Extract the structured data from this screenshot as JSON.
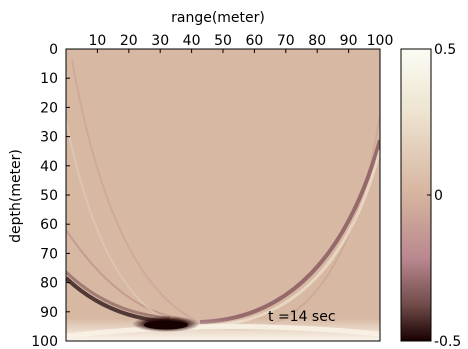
{
  "chart_data": {
    "type": "heatmap",
    "title": "",
    "xlabel": "range(meter)",
    "ylabel": "depth(meter)",
    "xlim": [
      0,
      100
    ],
    "ylim": [
      100,
      0
    ],
    "xticks": [
      "10",
      "20",
      "30",
      "40",
      "50",
      "60",
      "70",
      "80",
      "90",
      "100"
    ],
    "yticks": [
      "0",
      "10",
      "20",
      "30",
      "40",
      "50",
      "60",
      "70",
      "80",
      "90",
      "100"
    ],
    "x_axis_position": "top",
    "annotation": "t =14 sec",
    "colorbar": {
      "range": [
        -0.5,
        0.5
      ],
      "ticks": [
        "0.5",
        "0",
        "-0.5"
      ]
    },
    "colors": {
      "background": "#d9b9a4",
      "positive_max": "#fcfcf4",
      "negative_max": "#180000",
      "zero": "#d6b49f"
    }
  }
}
